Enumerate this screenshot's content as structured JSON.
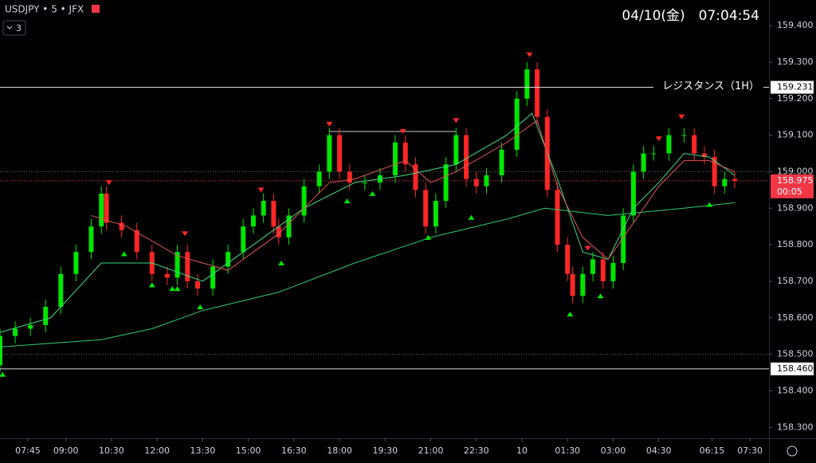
{
  "header": {
    "symbol": "USDJPY • 5 • JFX",
    "indicator_count": "3",
    "datetime": "04/10(金)　07:04:54"
  },
  "chart_data": {
    "type": "candlestick",
    "x": [
      0,
      6,
      12,
      18,
      24,
      30,
      36,
      40,
      42,
      48,
      54,
      60,
      66,
      70,
      74,
      78,
      84,
      90,
      96,
      100,
      104,
      108,
      110,
      114,
      120,
      126,
      130,
      134,
      138,
      144,
      150,
      156,
      160,
      164,
      168,
      172,
      176,
      180,
      184,
      188,
      192,
      198,
      204,
      208,
      212,
      216,
      220,
      224,
      226,
      230,
      234,
      238,
      242,
      246,
      250,
      254,
      258,
      264,
      270,
      274,
      278,
      282,
      286,
      290
    ],
    "open": [
      158.47,
      158.55,
      158.57,
      158.58,
      158.63,
      158.72,
      158.78,
      158.85,
      158.94,
      158.86,
      158.84,
      158.78,
      158.72,
      158.71,
      158.78,
      158.7,
      158.68,
      158.74,
      158.78,
      158.85,
      158.88,
      158.92,
      158.85,
      158.82,
      158.88,
      158.96,
      159.0,
      159.1,
      159.0,
      158.97,
      158.97,
      158.99,
      159.08,
      159.02,
      158.95,
      158.85,
      158.92,
      159.02,
      159.1,
      158.98,
      158.96,
      158.99,
      159.06,
      159.2,
      159.28,
      159.15,
      158.95,
      158.8,
      158.72,
      158.66,
      158.72,
      158.76,
      158.7,
      158.75,
      158.88,
      159.0,
      159.05,
      159.05,
      159.1,
      159.1,
      159.05,
      159.04,
      158.96,
      158.98
    ],
    "high": [
      158.57,
      158.59,
      158.6,
      158.65,
      158.74,
      158.8,
      158.87,
      158.96,
      158.96,
      158.88,
      158.86,
      158.8,
      158.74,
      158.8,
      158.8,
      158.72,
      158.76,
      158.8,
      158.87,
      158.9,
      158.94,
      158.94,
      158.87,
      158.9,
      158.98,
      159.02,
      159.12,
      159.12,
      159.02,
      158.99,
      159.01,
      159.1,
      159.1,
      159.04,
      158.97,
      158.94,
      159.04,
      159.12,
      159.12,
      159.0,
      159.01,
      159.08,
      159.22,
      159.3,
      159.3,
      159.17,
      158.97,
      158.82,
      158.74,
      158.74,
      158.78,
      158.78,
      158.77,
      158.9,
      159.02,
      159.07,
      159.07,
      159.12,
      159.12,
      159.12,
      159.07,
      159.06,
      159.0,
      159.0
    ],
    "low": [
      158.45,
      158.53,
      158.55,
      158.56,
      158.61,
      158.7,
      158.76,
      158.83,
      158.84,
      158.82,
      158.76,
      158.7,
      158.69,
      158.69,
      158.68,
      158.66,
      158.66,
      158.72,
      158.76,
      158.83,
      158.86,
      158.83,
      158.8,
      158.8,
      158.86,
      158.94,
      158.98,
      158.98,
      158.95,
      158.95,
      158.95,
      158.97,
      159.0,
      158.93,
      158.83,
      158.83,
      158.9,
      159.0,
      158.96,
      158.94,
      158.94,
      158.97,
      159.04,
      159.18,
      159.13,
      158.93,
      158.78,
      158.7,
      158.64,
      158.64,
      158.7,
      158.68,
      158.68,
      158.73,
      158.86,
      158.98,
      159.03,
      159.03,
      159.08,
      159.03,
      159.02,
      158.94,
      158.94,
      158.955
    ],
    "close": [
      158.55,
      158.57,
      158.58,
      158.63,
      158.72,
      158.78,
      158.85,
      158.94,
      158.86,
      158.84,
      158.78,
      158.72,
      158.71,
      158.78,
      158.7,
      158.68,
      158.74,
      158.78,
      158.85,
      158.88,
      158.92,
      158.85,
      158.82,
      158.88,
      158.96,
      159.0,
      159.1,
      159.0,
      158.97,
      158.97,
      158.99,
      159.08,
      159.02,
      158.95,
      158.85,
      158.92,
      159.02,
      159.1,
      158.98,
      158.96,
      158.99,
      159.06,
      159.2,
      159.28,
      159.15,
      158.95,
      158.8,
      158.72,
      158.66,
      158.72,
      158.76,
      158.7,
      158.75,
      158.88,
      159.0,
      159.05,
      159.05,
      159.1,
      159.1,
      159.05,
      159.04,
      158.96,
      158.98,
      158.975
    ],
    "up_color": "#00e600",
    "down_color": "#ff2626",
    "lines": [
      {
        "color": "#2ecc71",
        "x": [
          0,
          40,
          60,
          80,
          110,
          140,
          170,
          200,
          215,
          240,
          270,
          290
        ],
        "values": [
          158.52,
          158.54,
          158.57,
          158.62,
          158.67,
          158.75,
          158.82,
          158.87,
          158.9,
          158.88,
          158.9,
          158.915
        ]
      },
      {
        "color": "#3ddc84",
        "x": [
          0,
          20,
          40,
          60,
          80,
          100,
          120,
          140,
          160,
          180,
          200,
          210,
          220,
          230,
          240,
          250,
          260,
          270,
          280,
          290
        ],
        "values": [
          158.56,
          158.6,
          158.75,
          158.75,
          158.7,
          158.8,
          158.9,
          158.97,
          158.99,
          159.02,
          159.1,
          159.16,
          158.98,
          158.78,
          158.76,
          158.9,
          158.97,
          159.05,
          159.04,
          158.99
        ]
      },
      {
        "color": "#e05555",
        "x": [
          36,
          50,
          70,
          90,
          110,
          130,
          140,
          160,
          170,
          180,
          200,
          212,
          220,
          230,
          240,
          250,
          260,
          270,
          280,
          290
        ],
        "values": [
          158.88,
          158.85,
          158.77,
          158.73,
          158.83,
          158.97,
          158.98,
          159.03,
          158.97,
          159.0,
          159.08,
          159.14,
          158.96,
          158.82,
          158.76,
          158.86,
          158.96,
          159.03,
          159.03,
          159.0
        ]
      }
    ],
    "sell_signals": {
      "color": "#ff2626",
      "x": [
        43,
        73,
        103,
        130,
        159,
        180,
        209,
        232,
        260,
        269
      ],
      "values": [
        158.97,
        158.83,
        158.95,
        159.13,
        159.11,
        159.14,
        159.32,
        158.79,
        159.09,
        159.15
      ]
    },
    "buy_signals": {
      "color": "#00e600",
      "x": [
        1,
        49,
        60,
        68,
        70,
        79,
        111,
        137,
        147,
        169,
        186,
        225,
        237,
        280
      ],
      "values": [
        158.445,
        158.775,
        158.69,
        158.68,
        158.68,
        158.63,
        158.75,
        158.92,
        158.94,
        158.82,
        158.875,
        158.61,
        158.66,
        158.91
      ]
    },
    "levels": [
      {
        "value": 159.231,
        "label": "159.231",
        "text": "レジスタンス（1H）"
      },
      {
        "value": 158.46,
        "label": "158.460"
      }
    ],
    "dotted_levels": [
      159.0,
      158.5
    ],
    "range_line": {
      "value": 159.11,
      "x": [
        130,
        180
      ]
    },
    "last_price": {
      "value": 158.975,
      "label": "158.975",
      "countdown": "00:05",
      "color": "#f23645"
    },
    "xlim": [
      0,
      303.5
    ],
    "ylim": [
      158.27,
      159.47
    ],
    "xticks": [
      {
        "value": 11,
        "label": "07:45"
      },
      {
        "value": 26,
        "label": "09:00"
      },
      {
        "value": 44,
        "label": "10:30"
      },
      {
        "value": 62,
        "label": "12:00"
      },
      {
        "value": 80,
        "label": "13:30"
      },
      {
        "value": 98,
        "label": "15:00"
      },
      {
        "value": 116,
        "label": "16:30"
      },
      {
        "value": 134,
        "label": "18:00"
      },
      {
        "value": 152,
        "label": "19:30"
      },
      {
        "value": 170,
        "label": "21:00"
      },
      {
        "value": 188,
        "label": "22:30"
      },
      {
        "value": 206,
        "label": "10"
      },
      {
        "value": 224,
        "label": "01:30"
      },
      {
        "value": 242,
        "label": "03:00"
      },
      {
        "value": 260,
        "label": "04:30"
      },
      {
        "value": 281,
        "label": "06:15"
      },
      {
        "value": 296,
        "label": "07:30"
      }
    ],
    "yticks": [
      {
        "value": 159.4,
        "label": "159.400"
      },
      {
        "value": 159.3,
        "label": "159.300"
      },
      {
        "value": 159.2,
        "label": "159.200"
      },
      {
        "value": 159.1,
        "label": "159.100"
      },
      {
        "value": 159.0,
        "label": "159.000"
      },
      {
        "value": 158.9,
        "label": "158.900"
      },
      {
        "value": 158.8,
        "label": "158.800"
      },
      {
        "value": 158.7,
        "label": "158.700"
      },
      {
        "value": 158.6,
        "label": "158.600"
      },
      {
        "value": 158.5,
        "label": "158.500"
      },
      {
        "value": 158.4,
        "label": "158.400"
      },
      {
        "value": 158.3,
        "label": "158.300"
      }
    ]
  }
}
